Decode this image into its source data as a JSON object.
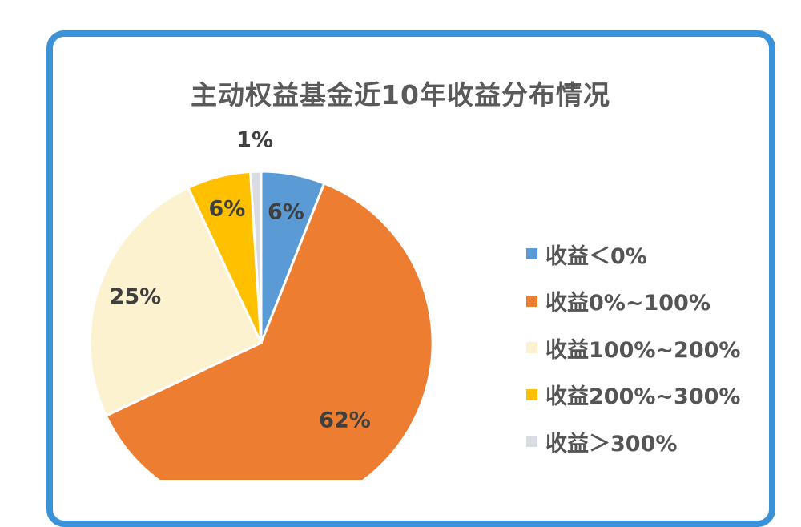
{
  "chart_data": {
    "type": "pie",
    "title": "主动权益基金近10年收益分布情况",
    "categories": [
      "收益＜0%",
      "收益0%~100%",
      "收益100%~200%",
      "收益200%~300%",
      "收益＞300%"
    ],
    "values": [
      6,
      62,
      25,
      6,
      1
    ],
    "labels": [
      "6%",
      "62%",
      "25%",
      "6%",
      "1%"
    ],
    "colors": [
      "#5b9bd5",
      "#ed7d31",
      "#fdf2d0",
      "#ffc000",
      "#d9dde3"
    ],
    "legend_position": "right"
  }
}
